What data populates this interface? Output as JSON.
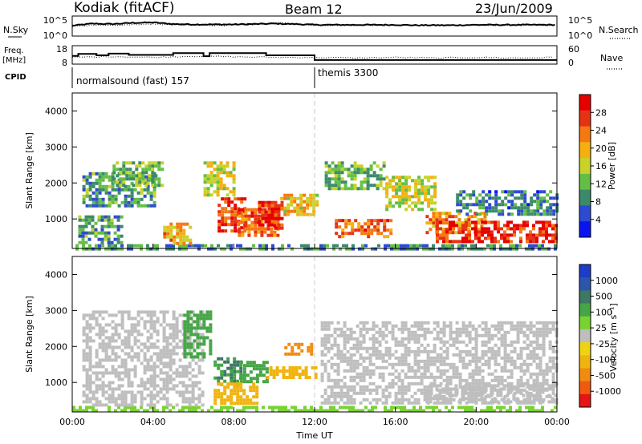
{
  "header": {
    "station": "Kodiak (fitACF)",
    "beam": "Beam 12",
    "date": "23/Jun/2009"
  },
  "nsky_panel": {
    "left_label": "N.Sky",
    "right_label": "N.Search",
    "left_ticks": [
      "10^5",
      "10^0"
    ],
    "right_ticks": [
      "10^5",
      "10^0"
    ]
  },
  "freq_panel": {
    "left_label_1": "Freq.",
    "left_label_2": "[MHz]",
    "right_label": "Nave",
    "left_ticks": [
      "18",
      "8"
    ],
    "right_ticks": [
      "60",
      "0"
    ]
  },
  "cpid": {
    "label": "CPID",
    "segments": [
      {
        "text": "normalsound (fast) 157",
        "start_hour": 0
      },
      {
        "text": "themis 3300",
        "start_hour": 12
      }
    ]
  },
  "time_axis": {
    "label": "Time UT",
    "ticks": [
      "00:00",
      "04:00",
      "08:00",
      "12:00",
      "16:00",
      "20:00",
      "00:00"
    ]
  },
  "range_axis": {
    "label": "Slant Range [km]",
    "ticks": [
      "1000",
      "2000",
      "3000",
      "4000"
    ]
  },
  "power_colorbar": {
    "label": "Power [dB]",
    "ticks": [
      "4",
      "8",
      "12",
      "16",
      "20",
      "24",
      "28"
    ],
    "colors": [
      "#0a14f0",
      "#2d4ad2",
      "#3b8a6a",
      "#64be46",
      "#c8d228",
      "#f5af0f",
      "#f57812",
      "#e63214",
      "#e60000"
    ]
  },
  "velocity_colorbar": {
    "label": "Velocity [m s⁻¹]",
    "ticks": [
      "1000",
      "500",
      "100",
      "25",
      "-25",
      "-100",
      "-500",
      "-1000"
    ],
    "colors": [
      "#1e3cc8",
      "#2d55aa",
      "#3c7864",
      "#46a546",
      "#78d232",
      "#bebebe",
      "#f0d214",
      "#f0b40f",
      "#f08c0f",
      "#f05a0f",
      "#e61414"
    ]
  },
  "chart_data": [
    {
      "type": "line",
      "title": "N.Sky",
      "x_range_hours": [
        0,
        24
      ],
      "ylim_log10": [
        0,
        5
      ],
      "series": [
        {
          "name": "N.Sky",
          "x": [
            0,
            1,
            2,
            3,
            4,
            5,
            6,
            7,
            8,
            9,
            10,
            11,
            12,
            13,
            14,
            15,
            16,
            17,
            18,
            19,
            20,
            21,
            22,
            23,
            24
          ],
          "y_log10": [
            2.6,
            3.1,
            3.0,
            3.3,
            3.4,
            3.0,
            2.9,
            2.9,
            2.9,
            3.0,
            3.1,
            3.0,
            2.8,
            2.8,
            2.8,
            2.8,
            2.8,
            2.7,
            2.7,
            2.7,
            2.8,
            2.8,
            2.8,
            2.8,
            2.8
          ]
        },
        {
          "name": "N.Search",
          "x": [
            0,
            1,
            2,
            3,
            4,
            5,
            6,
            7,
            8,
            9,
            10,
            11,
            12,
            13,
            14,
            15,
            16,
            17,
            18,
            19,
            20,
            21,
            22,
            23,
            24
          ],
          "y_log10": [
            2.4,
            2.7,
            2.7,
            2.9,
            3.0,
            2.8,
            2.7,
            2.7,
            2.7,
            2.8,
            3.4,
            3.0,
            2.7,
            2.7,
            2.7,
            2.7,
            2.7,
            2.7,
            2.7,
            2.7,
            2.7,
            2.7,
            2.7,
            2.7,
            2.7
          ]
        }
      ]
    },
    {
      "type": "line",
      "title": "Freq.",
      "x_range_hours": [
        0,
        24
      ],
      "ylim": [
        8,
        18
      ],
      "series": [
        {
          "name": "Freq.",
          "x": [
            0,
            0.3,
            1.2,
            1.8,
            2.8,
            5,
            6.5,
            6.8,
            9.6,
            11.7,
            12,
            24
          ],
          "y": [
            12.5,
            13.5,
            12.8,
            13.7,
            13.0,
            14.0,
            12.3,
            14.0,
            12.8,
            12.8,
            10.2,
            10.2
          ]
        },
        {
          "name": "Nave",
          "x": [
            0,
            2,
            4,
            6,
            8,
            10,
            12,
            14,
            16,
            18,
            20,
            22,
            24
          ],
          "y": [
            22,
            25,
            22,
            26,
            24,
            22,
            22,
            20,
            22,
            20,
            22,
            20,
            22
          ]
        }
      ]
    },
    {
      "type": "heatmap",
      "title": "Power [dB]",
      "xlabel": "Time UT",
      "ylabel": "Slant Range [km]",
      "x_range_hours": [
        0,
        24
      ],
      "ylim_km": [
        180,
        4500
      ],
      "color_ticks": [
        4,
        8,
        12,
        16,
        20,
        24,
        28
      ],
      "blobs": [
        {
          "t0": 0.0,
          "t1": 24.0,
          "r0": 180,
          "r1": 300,
          "level": 9
        },
        {
          "t0": 0.3,
          "t1": 2.5,
          "r0": 300,
          "r1": 1100,
          "level": 10
        },
        {
          "t0": 0.5,
          "t1": 4.0,
          "r0": 1400,
          "r1": 2300,
          "level": 10
        },
        {
          "t0": 2.0,
          "t1": 4.5,
          "r0": 1900,
          "r1": 2600,
          "level": 12
        },
        {
          "t0": 4.5,
          "t1": 5.8,
          "r0": 300,
          "r1": 900,
          "level": 20
        },
        {
          "t0": 6.5,
          "t1": 8.0,
          "r0": 1700,
          "r1": 2600,
          "level": 16
        },
        {
          "t0": 7.2,
          "t1": 8.6,
          "r0": 700,
          "r1": 1600,
          "level": 26
        },
        {
          "t0": 8.2,
          "t1": 10.2,
          "r0": 500,
          "r1": 1300,
          "level": 24
        },
        {
          "t0": 9.2,
          "t1": 10.4,
          "r0": 700,
          "r1": 1500,
          "level": 28
        },
        {
          "t0": 10.3,
          "t1": 12.1,
          "r0": 1100,
          "r1": 1700,
          "level": 18
        },
        {
          "t0": 12.5,
          "t1": 15.5,
          "r0": 1800,
          "r1": 2600,
          "level": 12
        },
        {
          "t0": 13.0,
          "t1": 15.8,
          "r0": 500,
          "r1": 1000,
          "level": 24
        },
        {
          "t0": 15.5,
          "t1": 18.0,
          "r0": 1300,
          "r1": 2200,
          "level": 16
        },
        {
          "t0": 17.5,
          "t1": 20.5,
          "r0": 650,
          "r1": 1200,
          "level": 22
        },
        {
          "t0": 18.0,
          "t1": 24.0,
          "r0": 400,
          "r1": 950,
          "level": 28
        },
        {
          "t0": 19.0,
          "t1": 24.0,
          "r0": 1100,
          "r1": 1800,
          "level": 8
        }
      ]
    },
    {
      "type": "heatmap",
      "title": "Velocity [m s⁻¹]",
      "xlabel": "Time UT",
      "ylabel": "Slant Range [km]",
      "x_range_hours": [
        0,
        24
      ],
      "ylim_km": [
        180,
        4500
      ],
      "color_ticks": [
        1000,
        500,
        100,
        25,
        -25,
        -100,
        -500,
        -1000
      ],
      "blobs": [
        {
          "t0": 0.0,
          "t1": 24.0,
          "r0": 180,
          "r1": 350,
          "velocity": 60
        },
        {
          "t0": 0.5,
          "t1": 6.5,
          "r0": 400,
          "r1": 3000,
          "velocity": 0
        },
        {
          "t0": 5.5,
          "t1": 6.8,
          "r0": 1700,
          "r1": 3000,
          "velocity": 150
        },
        {
          "t0": 7.0,
          "t1": 8.3,
          "r0": 900,
          "r1": 1700,
          "velocity": 300
        },
        {
          "t0": 8.3,
          "t1": 9.6,
          "r0": 1000,
          "r1": 1600,
          "velocity": 120
        },
        {
          "t0": 7.0,
          "t1": 9.2,
          "r0": 450,
          "r1": 1000,
          "velocity": -120
        },
        {
          "t0": 9.6,
          "t1": 12.0,
          "r0": 1150,
          "r1": 1450,
          "velocity": -150
        },
        {
          "t0": 10.5,
          "t1": 11.8,
          "r0": 1800,
          "r1": 2100,
          "velocity": -400
        },
        {
          "t0": 12.3,
          "t1": 24.0,
          "r0": 400,
          "r1": 2700,
          "velocity": 0
        },
        {
          "t0": 17.5,
          "t1": 24.0,
          "r0": 500,
          "r1": 950,
          "velocity": 0
        }
      ]
    }
  ]
}
